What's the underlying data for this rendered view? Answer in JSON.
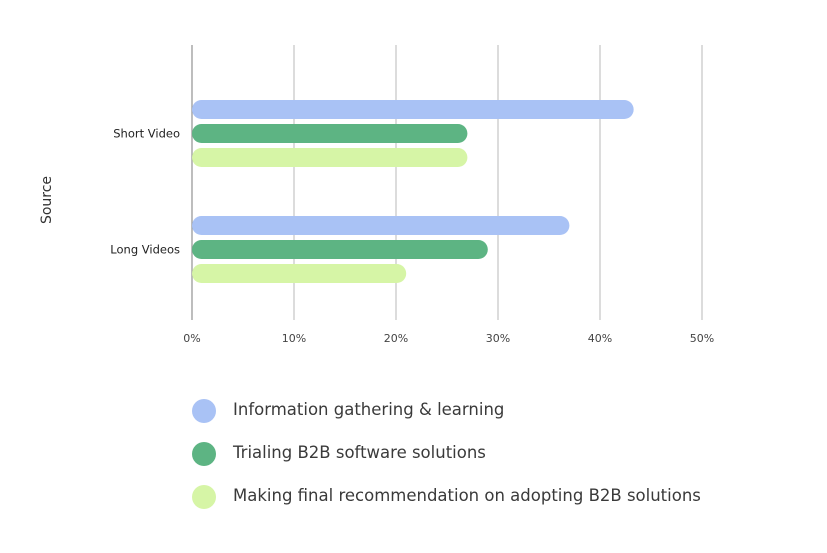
{
  "chart_data": {
    "type": "bar",
    "orientation": "horizontal",
    "ylabel": "Source",
    "categories": [
      "Short Video",
      "Long Videos"
    ],
    "xlim": [
      0,
      50
    ],
    "xticks": [
      0,
      10,
      20,
      30,
      40,
      50
    ],
    "xtick_labels": [
      "0%",
      "10%",
      "20%",
      "30%",
      "40%",
      "50%"
    ],
    "grid": "vertical",
    "legend_position": "bottom",
    "series": [
      {
        "name": "Information gathering & learning",
        "color": "#a9c2f5",
        "values": [
          43.3,
          37
        ]
      },
      {
        "name": "Trialing B2B software solutions",
        "color": "#5db483",
        "values": [
          27,
          29
        ]
      },
      {
        "name": "Making final recommendation on adopting B2B solutions",
        "color": "#d6f5a6",
        "values": [
          27,
          21
        ]
      }
    ]
  }
}
